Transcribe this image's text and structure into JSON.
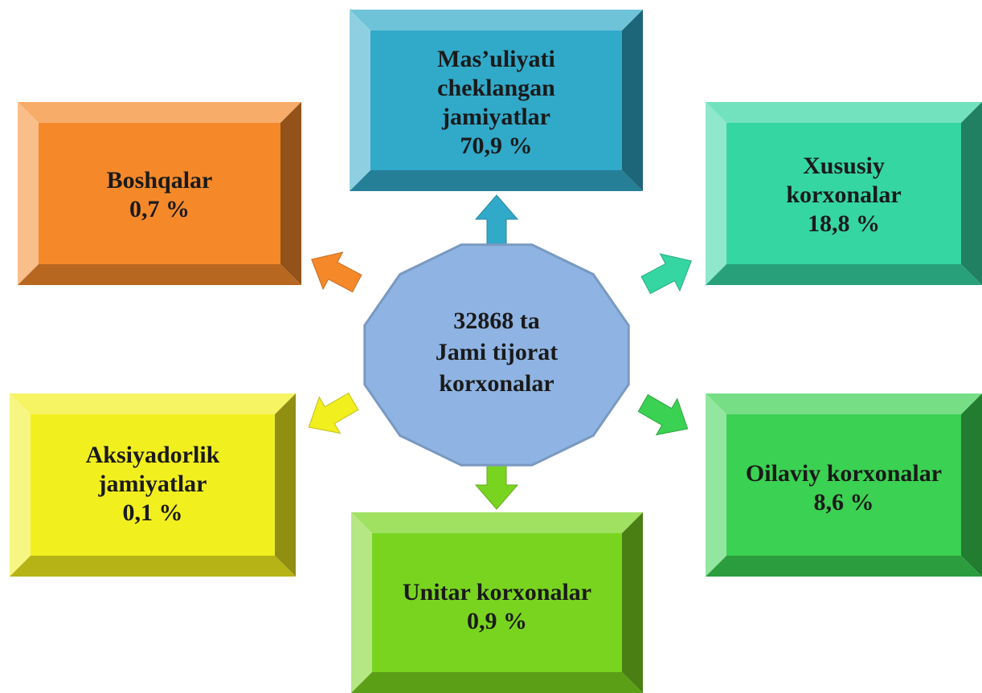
{
  "center": {
    "lines": [
      "32868 ta",
      "Jami tijorat",
      "korxonalar"
    ],
    "color": "#8fb4e3"
  },
  "nodes": [
    {
      "lines": [
        "Mas’uliyati",
        "cheklangan",
        "jamiyatlar",
        "70,9 %"
      ],
      "color": "#31a9c9"
    },
    {
      "lines": [
        "Xususiy",
        "korxonalar",
        "18,8 %"
      ],
      "color": "#35d6a2"
    },
    {
      "lines": [
        "Oilaviy korxonalar",
        "8,6 %"
      ],
      "color": "#3bd152"
    },
    {
      "lines": [
        "Unitar korxonalar",
        "0,9 %"
      ],
      "color": "#79d41f"
    },
    {
      "lines": [
        "Aksiyadorlik",
        "jamiyatlar",
        "0,1 %"
      ],
      "color": "#f2ef1e"
    },
    {
      "lines": [
        "Boshqalar",
        "0,7 %"
      ],
      "color": "#f5892a"
    }
  ]
}
